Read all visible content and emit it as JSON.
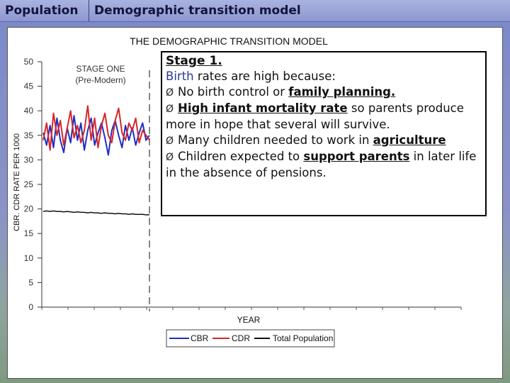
{
  "header": {
    "section": "Population",
    "title": "Demographic transition model"
  },
  "chart_data": {
    "type": "line",
    "title": "THE DEMOGRAPHIC TRANSITION MODEL",
    "xlabel": "YEAR",
    "ylabel": "CBR. CDR RATE PER 1000",
    "ylim": [
      0,
      50
    ],
    "yticks": [
      "0",
      "5",
      "10",
      "15",
      "20",
      "25",
      "30",
      "35",
      "40",
      "45",
      "50"
    ],
    "stage_label": [
      "STAGE ONE",
      "(Pre-Modern)"
    ],
    "legend": {
      "placement": "bottom-center"
    },
    "series": [
      {
        "name": "CBR",
        "color": "#1f2fbf",
        "values": [
          35.5,
          33.0,
          37.0,
          32.5,
          38.5,
          34.0,
          31.5,
          36.5,
          33.5,
          39.0,
          34.0,
          37.5,
          32.0,
          36.0,
          38.5,
          33.0,
          35.5,
          37.5,
          34.5,
          31.0,
          36.0,
          38.0,
          35.0,
          32.5,
          37.0,
          34.0,
          36.5,
          33.0,
          35.5,
          37.5,
          34.0,
          35.0
        ]
      },
      {
        "name": "CDR",
        "color": "#d8262a",
        "values": [
          34.0,
          37.5,
          32.0,
          39.5,
          35.0,
          38.0,
          33.0,
          36.5,
          40.0,
          34.5,
          37.0,
          33.5,
          36.0,
          41.0,
          34.0,
          38.5,
          32.5,
          37.0,
          39.5,
          35.0,
          33.5,
          38.0,
          40.5,
          35.5,
          34.0,
          37.5,
          36.0,
          38.5,
          33.5,
          36.0,
          35.0,
          34.0
        ]
      },
      {
        "name": "Total Population",
        "color": "#111111",
        "values": [
          19.5,
          19.6,
          19.5,
          19.6,
          19.5,
          19.5,
          19.4,
          19.5,
          19.4,
          19.3,
          19.4,
          19.3,
          19.3,
          19.2,
          19.3,
          19.2,
          19.2,
          19.1,
          19.2,
          19.1,
          19.1,
          19.0,
          19.1,
          19.0,
          19.0,
          18.9,
          19.0,
          18.9,
          18.9,
          18.9,
          18.8,
          18.8
        ]
      }
    ]
  },
  "info_box": {
    "title": "Stage 1.",
    "birth": "Birth",
    "intro_rest": " rates are high because:",
    "b1_pre": "No birth control or ",
    "b1_bold": "family planning.",
    "b2_bold": "High infant mortality rate",
    "b2_rest": " so parents produce more in hope that several will survive.",
    "b3_pre": "Many children needed to work in ",
    "b3_bold": "agriculture",
    "b4_pre": "Children expected to ",
    "b4_bold": "support parents",
    "b4_rest": " in later life in the absence of pensions.",
    "bullet": "Ø"
  }
}
